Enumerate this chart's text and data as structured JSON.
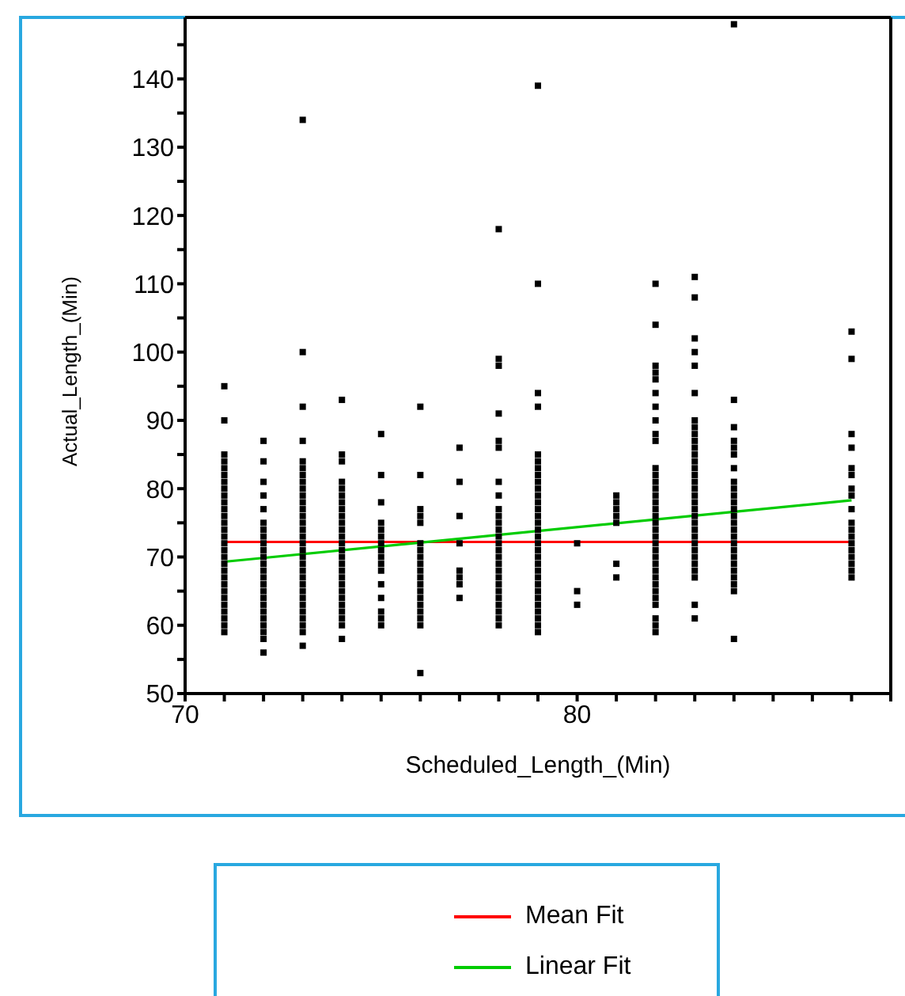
{
  "chart_data": {
    "type": "scatter",
    "xlabel": "Scheduled_Length_(Min)",
    "ylabel": "Actual_Length_(Min)",
    "xlim": [
      70,
      88
    ],
    "ylim": [
      50,
      149
    ],
    "xticks": [
      70,
      {
        "value": 71,
        "label": null
      },
      {
        "value": 72,
        "label": null
      },
      {
        "value": 73,
        "label": null
      },
      {
        "value": 74,
        "label": null
      },
      {
        "value": 75,
        "label": null
      },
      {
        "value": 76,
        "label": null
      },
      {
        "value": 77,
        "label": null
      },
      {
        "value": 78,
        "label": null
      },
      {
        "value": 79,
        "label": null
      },
      80,
      {
        "value": 81,
        "label": null
      },
      {
        "value": 82,
        "label": null
      },
      {
        "value": 83,
        "label": null
      },
      {
        "value": 84,
        "label": null
      },
      {
        "value": 85,
        "label": null
      },
      {
        "value": 86,
        "label": null
      },
      {
        "value": 87,
        "label": null
      },
      {
        "value": 88,
        "label": null
      }
    ],
    "yticks": [
      50,
      {
        "value": 55,
        "label": null
      },
      60,
      {
        "value": 65,
        "label": null
      },
      70,
      {
        "value": 75,
        "label": null
      },
      80,
      {
        "value": 85,
        "label": null
      },
      90,
      {
        "value": 95,
        "label": null
      },
      100,
      {
        "value": 105,
        "label": null
      },
      110,
      {
        "value": 115,
        "label": null
      },
      120,
      {
        "value": 125,
        "label": null
      },
      130,
      {
        "value": 135,
        "label": null
      },
      140,
      {
        "value": 145,
        "label": null
      }
    ],
    "grid": false,
    "legend": "bottom",
    "marker": "square",
    "series": [
      {
        "type": "scatter",
        "color": "#000000",
        "x": [
          71,
          71,
          71,
          71,
          71,
          71,
          71,
          71,
          71,
          71,
          71,
          71,
          71,
          71,
          71,
          71,
          71,
          71,
          71,
          71,
          71,
          71,
          71,
          71,
          71,
          71,
          71,
          71,
          71
        ],
        "values": [
          59,
          60,
          61,
          62,
          63,
          64,
          65,
          66,
          67,
          68,
          69,
          70,
          71,
          72,
          73,
          74,
          75,
          76,
          77,
          78,
          79,
          80,
          81,
          82,
          83,
          84,
          85,
          90,
          95
        ]
      },
      {
        "type": "scatter",
        "color": "#000000",
        "x": [
          72,
          72,
          72,
          72,
          72,
          72,
          72,
          72,
          72,
          72,
          72,
          72,
          72,
          72,
          72,
          72,
          72,
          72,
          72,
          72,
          72,
          72,
          72,
          72
        ],
        "values": [
          56,
          58,
          59,
          60,
          61,
          62,
          63,
          64,
          65,
          66,
          67,
          68,
          69,
          70,
          71,
          72,
          73,
          74,
          75,
          77,
          79,
          81,
          84,
          87
        ]
      },
      {
        "type": "scatter",
        "color": "#000000",
        "x": [
          73,
          73,
          73,
          73,
          73,
          73,
          73,
          73,
          73,
          73,
          73,
          73,
          73,
          73,
          73,
          73,
          73,
          73,
          73,
          73,
          73,
          73,
          73,
          73,
          73,
          73,
          73,
          73,
          73,
          73,
          73
        ],
        "values": [
          57,
          59,
          60,
          61,
          62,
          63,
          64,
          65,
          66,
          67,
          68,
          69,
          70,
          71,
          72,
          73,
          74,
          75,
          76,
          77,
          78,
          79,
          80,
          81,
          82,
          83,
          84,
          87,
          92,
          100,
          134
        ]
      },
      {
        "type": "scatter",
        "color": "#000000",
        "x": [
          74,
          74,
          74,
          74,
          74,
          74,
          74,
          74,
          74,
          74,
          74,
          74,
          74,
          74,
          74,
          74,
          74,
          74,
          74,
          74,
          74,
          74,
          74,
          74,
          74,
          74
        ],
        "values": [
          58,
          60,
          61,
          62,
          63,
          64,
          65,
          66,
          67,
          68,
          69,
          70,
          71,
          72,
          73,
          74,
          75,
          76,
          77,
          78,
          79,
          80,
          81,
          84,
          85,
          93
        ]
      },
      {
        "type": "scatter",
        "color": "#000000",
        "x": [
          75,
          75,
          75,
          75,
          75,
          75,
          75,
          75,
          75,
          75,
          75,
          75,
          75,
          75,
          75,
          75
        ],
        "values": [
          60,
          61,
          62,
          64,
          66,
          68,
          69,
          70,
          71,
          72,
          73,
          74,
          75,
          78,
          82,
          88
        ]
      },
      {
        "type": "scatter",
        "color": "#000000",
        "x": [
          76,
          76,
          76,
          76,
          76,
          76,
          76,
          76,
          76,
          76,
          76,
          76,
          76,
          76,
          76,
          76,
          76,
          76,
          76
        ],
        "values": [
          53,
          60,
          61,
          62,
          63,
          64,
          65,
          66,
          67,
          68,
          69,
          70,
          71,
          72,
          75,
          76,
          77,
          82,
          92
        ]
      },
      {
        "type": "scatter",
        "color": "#000000",
        "x": [
          77,
          77,
          77,
          77,
          77,
          77,
          77,
          77
        ],
        "values": [
          64,
          66,
          67,
          68,
          72,
          76,
          81,
          86
        ]
      },
      {
        "type": "scatter",
        "color": "#000000",
        "x": [
          78,
          78,
          78,
          78,
          78,
          78,
          78,
          78,
          78,
          78,
          78,
          78,
          78,
          78,
          78,
          78,
          78,
          78,
          78,
          78,
          78,
          78,
          78,
          78,
          78,
          78
        ],
        "values": [
          60,
          61,
          62,
          63,
          64,
          65,
          66,
          67,
          68,
          69,
          70,
          71,
          72,
          73,
          74,
          75,
          76,
          77,
          79,
          81,
          86,
          87,
          91,
          98,
          99,
          118
        ]
      },
      {
        "type": "scatter",
        "color": "#000000",
        "x": [
          79,
          79,
          79,
          79,
          79,
          79,
          79,
          79,
          79,
          79,
          79,
          79,
          79,
          79,
          79,
          79,
          79,
          79,
          79,
          79,
          79,
          79,
          79,
          79,
          79,
          79,
          79,
          79,
          79,
          79,
          79
        ],
        "values": [
          59,
          60,
          61,
          62,
          63,
          64,
          65,
          66,
          67,
          68,
          69,
          70,
          71,
          72,
          73,
          74,
          75,
          76,
          77,
          78,
          79,
          80,
          81,
          82,
          83,
          84,
          85,
          92,
          94,
          110,
          139
        ]
      },
      {
        "type": "scatter",
        "color": "#000000",
        "x": [
          80,
          80,
          80
        ],
        "values": [
          63,
          65,
          72
        ]
      },
      {
        "type": "scatter",
        "color": "#000000",
        "x": [
          81,
          81,
          81,
          81,
          81,
          81,
          81
        ],
        "values": [
          67,
          69,
          75,
          76,
          77,
          78,
          79
        ]
      },
      {
        "type": "scatter",
        "color": "#000000",
        "x": [
          82,
          82,
          82,
          82,
          82,
          82,
          82,
          82,
          82,
          82,
          82,
          82,
          82,
          82,
          82,
          82,
          82,
          82,
          82,
          82,
          82,
          82,
          82,
          82,
          82,
          82,
          82,
          82,
          82,
          82,
          82,
          82,
          82,
          82
        ],
        "values": [
          59,
          60,
          61,
          63,
          64,
          65,
          66,
          67,
          68,
          69,
          70,
          71,
          72,
          73,
          74,
          75,
          76,
          77,
          78,
          79,
          80,
          81,
          82,
          83,
          87,
          88,
          90,
          92,
          94,
          96,
          97,
          98,
          104,
          110
        ]
      },
      {
        "type": "scatter",
        "color": "#000000",
        "x": [
          83,
          83,
          83,
          83,
          83,
          83,
          83,
          83,
          83,
          83,
          83,
          83,
          83,
          83,
          83,
          83,
          83,
          83,
          83,
          83,
          83,
          83,
          83,
          83,
          83,
          83,
          83,
          83,
          83,
          83,
          83,
          83
        ],
        "values": [
          61,
          63,
          67,
          68,
          69,
          70,
          71,
          72,
          73,
          74,
          75,
          76,
          77,
          78,
          79,
          80,
          81,
          82,
          83,
          84,
          85,
          86,
          87,
          88,
          89,
          90,
          94,
          98,
          100,
          102,
          108,
          111
        ]
      },
      {
        "type": "scatter",
        "color": "#000000",
        "x": [
          84,
          84,
          84,
          84,
          84,
          84,
          84,
          84,
          84,
          84,
          84,
          84,
          84,
          84,
          84,
          84,
          84,
          84,
          84,
          84,
          84,
          84,
          84,
          84,
          84
        ],
        "values": [
          58,
          65,
          66,
          67,
          68,
          69,
          70,
          71,
          72,
          73,
          74,
          75,
          76,
          77,
          78,
          79,
          80,
          81,
          83,
          85,
          86,
          87,
          89,
          93,
          148
        ]
      },
      {
        "type": "scatter",
        "color": "#000000",
        "x": [
          87,
          87,
          87,
          87,
          87,
          87,
          87,
          87,
          87,
          87,
          87,
          87,
          87,
          87,
          87,
          87,
          87,
          87
        ],
        "values": [
          67,
          68,
          69,
          70,
          71,
          72,
          73,
          74,
          75,
          77,
          79,
          80,
          82,
          83,
          86,
          88,
          99,
          103
        ]
      },
      {
        "type": "line",
        "name": "Mean Fit",
        "color": "#ff0000",
        "marker": "none",
        "x": [
          71,
          87
        ],
        "values": [
          72.2,
          72.2
        ]
      },
      {
        "type": "line",
        "name": "Linear Fit",
        "color": "#00cc00",
        "marker": "none",
        "x": [
          71,
          87
        ],
        "values": [
          69.3,
          78.3
        ]
      }
    ]
  }
}
